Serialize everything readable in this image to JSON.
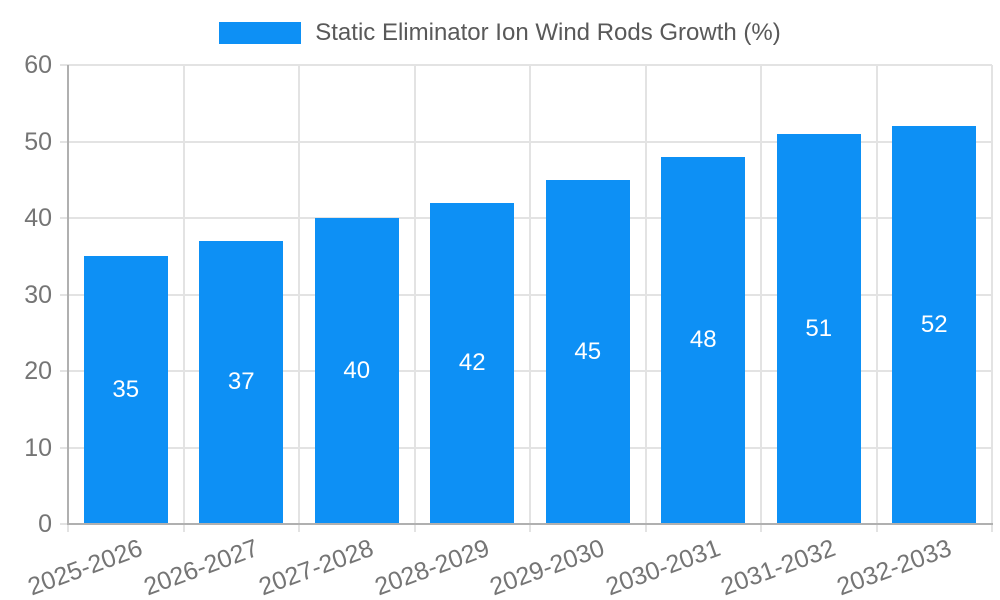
{
  "legend": {
    "label": "Static Eliminator Ion Wind Rods Growth (%)"
  },
  "colors": {
    "bar": "#0d90f5",
    "grid": "#e3e3e3",
    "axis": "#b0b0b0",
    "tick_label": "#757575",
    "legend_text": "#595959",
    "value_label": "#ffffff",
    "background": "#ffffff"
  },
  "chart_data": {
    "type": "bar",
    "title": "",
    "legend_entries": [
      "Static Eliminator Ion Wind Rods Growth (%)"
    ],
    "legend_position": "top-center",
    "categories": [
      "2025-2026",
      "2026-2027",
      "2027-2028",
      "2028-2029",
      "2029-2030",
      "2030-2031",
      "2031-2032",
      "2032-2033"
    ],
    "values": [
      35,
      37,
      40,
      42,
      45,
      48,
      51,
      52
    ],
    "bar_value_labels": [
      "35",
      "37",
      "40",
      "42",
      "45",
      "48",
      "51",
      "52"
    ],
    "xlabel": "",
    "ylabel": "",
    "ylim": [
      0,
      60
    ],
    "yticks": [
      0,
      10,
      20,
      30,
      40,
      50,
      60
    ],
    "grid": true,
    "x_tick_rotation_deg": -20
  }
}
